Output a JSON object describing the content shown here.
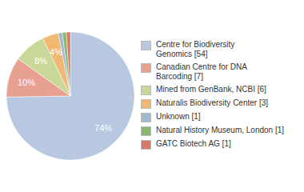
{
  "chart_data": {
    "type": "pie",
    "categories": [
      "Centre for Biodiversity\nGenomics [54]",
      "Canadian Centre for DNA\nBarcoding [7]",
      "Mined from GenBank, NCBI [6]",
      "Naturalis Biodiversity Center [3]",
      "Unknown [1]",
      "Natural History Museum, London [1]",
      "GATC Biotech AG [1]"
    ],
    "values": [
      74,
      10,
      8,
      4,
      1,
      1,
      1
    ],
    "value_labels": [
      "74%",
      "10%",
      "8%",
      "4%",
      null,
      null,
      null
    ],
    "colors": [
      "#b8c8e0",
      "#e8a090",
      "#c8d898",
      "#f0b870",
      "#a0b8d0",
      "#88b870",
      "#d87868"
    ],
    "data_labels": true,
    "legend": "right"
  }
}
